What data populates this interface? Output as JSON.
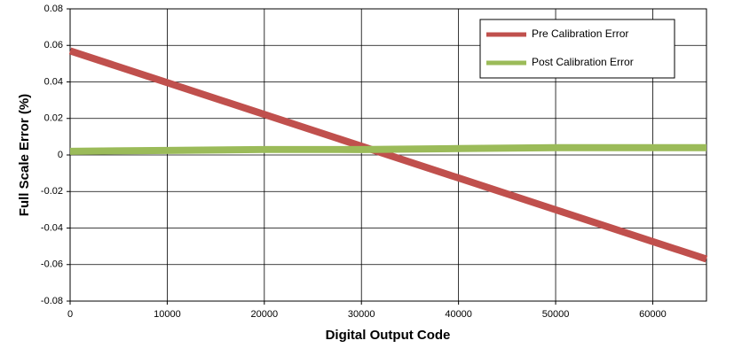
{
  "chart_data": {
    "type": "line",
    "x_label": "Digital Output Code",
    "y_label": "Full Scale Error (%)",
    "x": [
      0,
      10000,
      20000,
      30000,
      40000,
      50000,
      60000,
      65535
    ],
    "series": [
      {
        "name": "Pre Calibration Error",
        "color": "#c0504d",
        "values": [
          0.057,
          0.0396,
          0.0222,
          0.0048,
          -0.0126,
          -0.03,
          -0.0474,
          -0.057
        ]
      },
      {
        "name": "Post Calibration Error",
        "color": "#9bbb59",
        "values": [
          0.002,
          0.0025,
          0.003,
          0.003,
          0.0035,
          0.004,
          0.004,
          0.004
        ]
      }
    ],
    "xlim": [
      0,
      65535
    ],
    "xticks": [
      0,
      10000,
      20000,
      30000,
      40000,
      50000,
      60000
    ],
    "ylim": [
      -0.08,
      0.08
    ],
    "yticks": [
      0.08,
      0.06,
      0.04,
      0.02,
      0,
      -0.02,
      -0.04,
      -0.06,
      -0.08
    ],
    "grid": true,
    "legend": "upper right"
  }
}
